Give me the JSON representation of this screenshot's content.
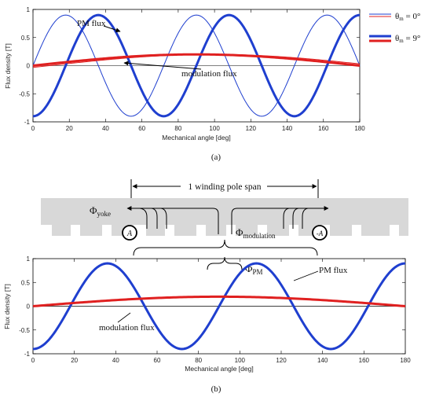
{
  "panel_labels": {
    "a": "(a)",
    "b": "(b)"
  },
  "legend": {
    "entries": [
      {
        "label": "θm = 0°",
        "color": "#1f3fcf",
        "weight": "thin"
      },
      {
        "label": "θm = 9°",
        "color": "#e02020",
        "weight": "thick"
      }
    ]
  },
  "diagram": {
    "span_label": "1 winding pole span",
    "phi_yoke": "Φyoke",
    "phi_modulation": "Φmodulation",
    "phi_pm": "ΦPM",
    "coil_left": "A",
    "coil_right": "-A"
  },
  "colors": {
    "pm": "#1f3fcf",
    "mod": "#e02020",
    "iron": "#d8d8d8"
  },
  "chart_data": [
    {
      "type": "line",
      "panel": "a",
      "xlabel": "Mechanical angle [deg]",
      "ylabel": "Flux density [T]",
      "xlim": [
        0,
        180
      ],
      "ylim": [
        -1,
        1
      ],
      "xticks": [
        0,
        20,
        40,
        60,
        80,
        100,
        120,
        140,
        160,
        180
      ],
      "yticks": [
        -1,
        -0.5,
        0,
        0.5,
        1
      ],
      "grid": false,
      "legend_position": "outside-right",
      "annotations": [
        "PM flux",
        "modulation flux"
      ],
      "series": [
        {
          "name": "PM flux, θm = 0°",
          "color": "#1f3fcf",
          "width": "thin",
          "function": "0.9*sin(5*x)",
          "x_step": 1
        },
        {
          "name": "modulation flux, θm = 0°",
          "color": "#e02020",
          "width": "thin",
          "function": "0.2*sin(x-9)",
          "x_step": 1
        },
        {
          "name": "PM flux, θm = 9°",
          "color": "#1f3fcf",
          "width": "thick",
          "function": "-0.9*cos(5*x)",
          "x_step": 1
        },
        {
          "name": "modulation flux, θm = 9°",
          "color": "#e02020",
          "width": "thick",
          "function": "0.2*sin(x)",
          "x_step": 1
        }
      ]
    },
    {
      "type": "line",
      "panel": "b",
      "xlabel": "Mechanical angle [deg]",
      "ylabel": "Flux density [T]",
      "xlim": [
        0,
        180
      ],
      "ylim": [
        -1,
        1
      ],
      "xticks": [
        0,
        20,
        40,
        60,
        80,
        100,
        120,
        140,
        160,
        180
      ],
      "yticks": [
        -1,
        -0.5,
        0,
        0.5,
        1
      ],
      "grid": false,
      "annotations": [
        "PM flux",
        "modulation flux"
      ],
      "series": [
        {
          "name": "PM flux",
          "color": "#1f3fcf",
          "width": "thick",
          "function": "-0.9*cos(5*x)",
          "x_step": 1
        },
        {
          "name": "modulation flux",
          "color": "#e02020",
          "width": "thick",
          "function": "0.2*sin(x)",
          "x_step": 1
        }
      ]
    }
  ]
}
